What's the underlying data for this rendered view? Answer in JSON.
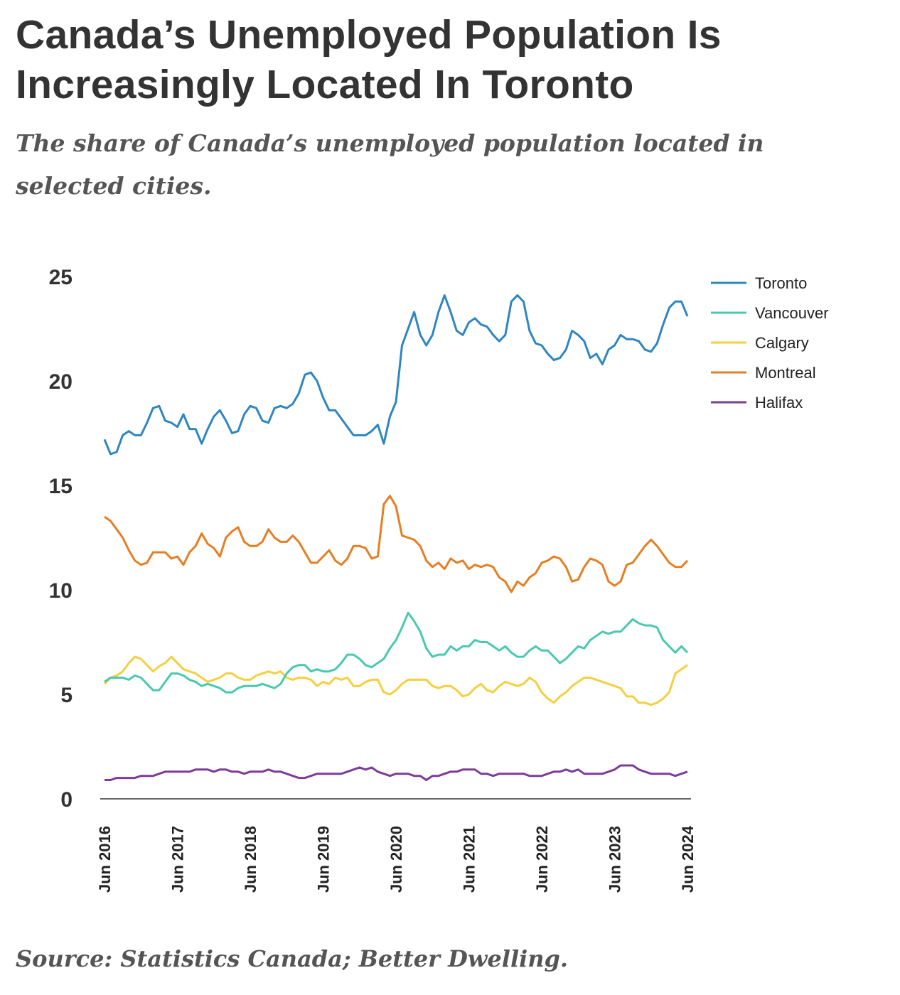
{
  "chart_data": {
    "type": "line",
    "title": "Canada’s Unemployed Population Is Increasingly Located In Toronto",
    "subtitle": "The share of Canada’s unemployed population located in selected cities.",
    "source": "Source: Statistics Canada; Better Dwelling.",
    "xlabel": "",
    "ylabel": "",
    "ylim": [
      0,
      25
    ],
    "yticks": [
      "0",
      "5",
      "10",
      "15",
      "20",
      "25"
    ],
    "ytick_values": [
      0,
      5,
      10,
      15,
      20,
      25
    ],
    "xticks": [
      "Jun 2016",
      "Jun 2017",
      "Jun 2018",
      "Jun 2019",
      "Jun 2020",
      "Jun 2021",
      "Jun 2022",
      "Jun 2023",
      "Jun 2024"
    ],
    "x_frequency": "monthly, Jun 2016 to Jun 2024",
    "grid": false,
    "legend_position": "right",
    "series": [
      {
        "name": "Toronto",
        "color": "#2e86c1",
        "values": [
          17.2,
          16.5,
          16.6,
          17.4,
          17.6,
          17.4,
          17.4,
          18.0,
          18.7,
          18.8,
          18.1,
          18.0,
          17.8,
          18.4,
          17.7,
          17.7,
          17.0,
          17.7,
          18.3,
          18.6,
          18.1,
          17.5,
          17.6,
          18.4,
          18.8,
          18.7,
          18.1,
          18.0,
          18.7,
          18.8,
          18.7,
          18.9,
          19.4,
          20.3,
          20.4,
          20.0,
          19.2,
          18.6,
          18.6,
          18.2,
          17.8,
          17.4,
          17.4,
          17.4,
          17.6,
          17.9,
          17.0,
          18.3,
          19.0,
          21.7,
          22.5,
          23.3,
          22.2,
          21.7,
          22.2,
          23.3,
          24.1,
          23.3,
          22.4,
          22.2,
          22.8,
          23.0,
          22.7,
          22.6,
          22.2,
          21.9,
          22.2,
          23.8,
          24.1,
          23.8,
          22.4,
          21.8,
          21.7,
          21.3,
          21.0,
          21.1,
          21.5,
          22.4,
          22.2,
          21.9,
          21.1,
          21.3,
          20.8,
          21.5,
          21.7,
          22.2,
          22.0,
          22.0,
          21.9,
          21.5,
          21.4,
          21.8,
          22.7,
          23.5,
          23.8,
          23.8,
          23.1
        ]
      },
      {
        "name": "Vancouver",
        "color": "#48c9b0",
        "values": [
          5.6,
          5.8,
          5.8,
          5.8,
          5.7,
          5.9,
          5.8,
          5.5,
          5.2,
          5.2,
          5.6,
          6.0,
          6.0,
          5.9,
          5.7,
          5.6,
          5.4,
          5.5,
          5.4,
          5.3,
          5.1,
          5.1,
          5.3,
          5.4,
          5.4,
          5.4,
          5.5,
          5.4,
          5.3,
          5.5,
          6.0,
          6.3,
          6.4,
          6.4,
          6.1,
          6.2,
          6.1,
          6.1,
          6.2,
          6.5,
          6.9,
          6.9,
          6.7,
          6.4,
          6.3,
          6.5,
          6.7,
          7.2,
          7.6,
          8.2,
          8.9,
          8.5,
          8.0,
          7.2,
          6.8,
          6.9,
          6.9,
          7.3,
          7.1,
          7.3,
          7.3,
          7.6,
          7.5,
          7.5,
          7.3,
          7.1,
          7.3,
          7.0,
          6.8,
          6.8,
          7.1,
          7.3,
          7.1,
          7.1,
          6.8,
          6.5,
          6.7,
          7.0,
          7.3,
          7.2,
          7.6,
          7.8,
          8.0,
          7.9,
          8.0,
          8.0,
          8.3,
          8.6,
          8.4,
          8.3,
          8.3,
          8.2,
          7.6,
          7.3,
          7.0,
          7.3,
          7.0
        ]
      },
      {
        "name": "Calgary",
        "color": "#f4d03f",
        "values": [
          5.5,
          5.8,
          5.9,
          6.1,
          6.5,
          6.8,
          6.7,
          6.4,
          6.1,
          6.35,
          6.5,
          6.8,
          6.5,
          6.2,
          6.1,
          6.0,
          5.8,
          5.6,
          5.7,
          5.8,
          6.0,
          6.0,
          5.8,
          5.7,
          5.7,
          5.9,
          6.0,
          6.1,
          6.0,
          6.1,
          5.8,
          5.7,
          5.8,
          5.8,
          5.7,
          5.4,
          5.6,
          5.5,
          5.8,
          5.7,
          5.8,
          5.4,
          5.4,
          5.6,
          5.7,
          5.7,
          5.1,
          5.0,
          5.2,
          5.5,
          5.7,
          5.7,
          5.7,
          5.7,
          5.4,
          5.3,
          5.4,
          5.4,
          5.2,
          4.9,
          5.0,
          5.3,
          5.5,
          5.2,
          5.1,
          5.4,
          5.6,
          5.5,
          5.4,
          5.5,
          5.8,
          5.6,
          5.1,
          4.8,
          4.6,
          4.9,
          5.1,
          5.4,
          5.6,
          5.8,
          5.8,
          5.7,
          5.6,
          5.5,
          5.4,
          5.3,
          4.9,
          4.9,
          4.6,
          4.6,
          4.5,
          4.6,
          4.8,
          5.1,
          6.0,
          6.2,
          6.4
        ]
      },
      {
        "name": "Montreal",
        "color": "#e67e22",
        "values": [
          13.5,
          13.3,
          12.9,
          12.5,
          11.9,
          11.4,
          11.2,
          11.3,
          11.8,
          11.8,
          11.8,
          11.5,
          11.6,
          11.2,
          11.8,
          12.1,
          12.7,
          12.2,
          12.0,
          11.6,
          12.5,
          12.8,
          13.0,
          12.3,
          12.1,
          12.1,
          12.3,
          12.9,
          12.5,
          12.3,
          12.3,
          12.6,
          12.3,
          11.8,
          11.3,
          11.3,
          11.6,
          11.9,
          11.4,
          11.2,
          11.5,
          12.1,
          12.1,
          12.0,
          11.5,
          11.6,
          14.1,
          14.5,
          14.0,
          12.6,
          12.5,
          12.4,
          12.1,
          11.4,
          11.1,
          11.3,
          11.0,
          11.5,
          11.3,
          11.4,
          11.0,
          11.2,
          11.1,
          11.2,
          11.1,
          10.6,
          10.4,
          9.9,
          10.4,
          10.2,
          10.6,
          10.8,
          11.3,
          11.4,
          11.6,
          11.5,
          11.1,
          10.4,
          10.5,
          11.1,
          11.5,
          11.4,
          11.2,
          10.4,
          10.2,
          10.4,
          11.2,
          11.3,
          11.7,
          12.1,
          12.4,
          12.1,
          11.7,
          11.3,
          11.1,
          11.1,
          11.4
        ]
      },
      {
        "name": "Halifax",
        "color": "#7d3c98",
        "values": [
          0.9,
          0.9,
          1.0,
          1.0,
          1.0,
          1.0,
          1.1,
          1.1,
          1.1,
          1.2,
          1.3,
          1.3,
          1.3,
          1.3,
          1.3,
          1.4,
          1.4,
          1.4,
          1.3,
          1.4,
          1.4,
          1.3,
          1.3,
          1.2,
          1.3,
          1.3,
          1.3,
          1.4,
          1.3,
          1.3,
          1.2,
          1.1,
          1.0,
          1.0,
          1.1,
          1.2,
          1.2,
          1.2,
          1.2,
          1.2,
          1.3,
          1.4,
          1.5,
          1.4,
          1.5,
          1.3,
          1.2,
          1.1,
          1.2,
          1.2,
          1.2,
          1.1,
          1.1,
          0.9,
          1.1,
          1.1,
          1.2,
          1.3,
          1.3,
          1.4,
          1.4,
          1.4,
          1.2,
          1.2,
          1.1,
          1.2,
          1.2,
          1.2,
          1.2,
          1.2,
          1.1,
          1.1,
          1.1,
          1.2,
          1.3,
          1.3,
          1.4,
          1.3,
          1.4,
          1.2,
          1.2,
          1.2,
          1.2,
          1.3,
          1.4,
          1.6,
          1.6,
          1.6,
          1.4,
          1.3,
          1.2,
          1.2,
          1.2,
          1.2,
          1.1,
          1.2,
          1.3
        ]
      }
    ]
  }
}
